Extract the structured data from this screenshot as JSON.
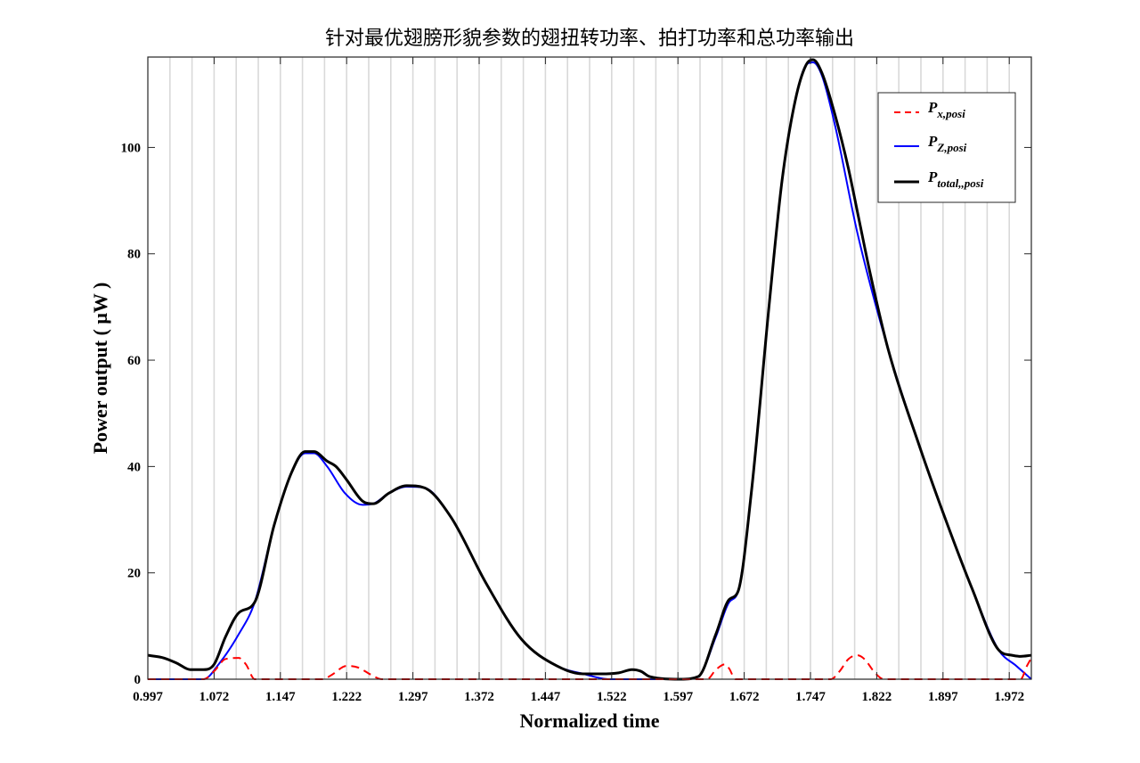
{
  "chart_data": {
    "type": "line",
    "title": "针对最优翅膀形貌参数的翅扭转功率、拍打功率和总功率输出",
    "xlabel": "Normalized time",
    "ylabel": "Power output ( μW )",
    "xlim": [
      0.997,
      1.997
    ],
    "ylim": [
      0,
      117
    ],
    "x_tick_labels": [
      "0.997",
      "1.072",
      "1.147",
      "1.222",
      "1.297",
      "1.372",
      "1.447",
      "1.522",
      "1.597",
      "1.672",
      "1.747",
      "1.822",
      "1.897",
      "1.972"
    ],
    "x_tick_values": [
      0.997,
      1.072,
      1.147,
      1.222,
      1.297,
      1.372,
      1.447,
      1.522,
      1.597,
      1.672,
      1.747,
      1.822,
      1.897,
      1.972
    ],
    "y_ticks": [
      0,
      20,
      40,
      60,
      80,
      100
    ],
    "grid": "vertical lines",
    "legend_position": "top-right",
    "series": [
      {
        "name": "P_x,posi",
        "legend_main": "P",
        "legend_sub": "x,posi",
        "color": "#ff0000",
        "style": "dashed",
        "x": [
          0.997,
          1.06,
          1.072,
          1.085,
          1.1,
          1.108,
          1.118,
          1.18,
          1.195,
          1.205,
          1.222,
          1.235,
          1.25,
          1.262,
          1.63,
          1.64,
          1.65,
          1.655,
          1.662,
          1.77,
          1.78,
          1.79,
          1.8,
          1.808,
          1.82,
          1.83,
          1.985,
          1.992,
          1.997
        ],
        "y": [
          0,
          0,
          1.5,
          3.8,
          4.0,
          2.8,
          0,
          0,
          0,
          0.8,
          2.5,
          2.2,
          0.8,
          0,
          0,
          1.8,
          2.8,
          2.0,
          0,
          0,
          1.5,
          3.8,
          4.5,
          3.8,
          1.2,
          0,
          0,
          2.5,
          4.0
        ]
      },
      {
        "name": "P_Z,posi",
        "legend_main": "P",
        "legend_sub": "Z,posi",
        "color": "#0000ff",
        "style": "solid",
        "x": [
          0.997,
          1.06,
          1.078,
          1.1,
          1.118,
          1.14,
          1.16,
          1.175,
          1.185,
          1.2,
          1.22,
          1.24,
          1.252,
          1.27,
          1.29,
          1.31,
          1.34,
          1.38,
          1.42,
          1.46,
          1.49,
          1.52,
          1.6,
          1.62,
          1.64,
          1.655,
          1.665,
          1.68,
          1.7,
          1.715,
          1.73,
          1.742,
          1.75,
          1.76,
          1.775,
          1.8,
          1.835,
          1.87,
          1.9,
          1.93,
          1.96,
          1.98,
          1.997
        ],
        "y": [
          0,
          0,
          3.0,
          8.5,
          14.5,
          29.0,
          39.0,
          42.5,
          42.5,
          40.0,
          35.0,
          32.8,
          33.0,
          35.0,
          36.2,
          36.0,
          30.5,
          18.0,
          7.5,
          2.5,
          1.0,
          0.0,
          0.0,
          0.5,
          8.0,
          14.5,
          16.5,
          35.0,
          70.0,
          94.0,
          109.0,
          115.5,
          116.0,
          113.5,
          104.0,
          84.0,
          62.0,
          44.0,
          30.0,
          17.0,
          5.5,
          2.5,
          0.0
        ]
      },
      {
        "name": "P_total,,posi",
        "legend_main": "P",
        "legend_sub": "total,,posi",
        "color": "#000000",
        "style": "solid",
        "x": [
          0.997,
          1.015,
          1.03,
          1.045,
          1.06,
          1.072,
          1.085,
          1.1,
          1.118,
          1.14,
          1.16,
          1.175,
          1.185,
          1.2,
          1.21,
          1.222,
          1.24,
          1.252,
          1.27,
          1.29,
          1.31,
          1.34,
          1.38,
          1.42,
          1.46,
          1.49,
          1.51,
          1.53,
          1.545,
          1.555,
          1.565,
          1.6,
          1.62,
          1.64,
          1.655,
          1.665,
          1.68,
          1.7,
          1.715,
          1.73,
          1.742,
          1.75,
          1.76,
          1.775,
          1.79,
          1.8,
          1.815,
          1.835,
          1.87,
          1.9,
          1.93,
          1.96,
          1.975,
          1.985,
          1.997
        ],
        "y": [
          4.5,
          4.0,
          3.0,
          1.8,
          1.8,
          2.8,
          8.0,
          12.5,
          14.5,
          29.0,
          39.0,
          42.8,
          42.8,
          41.0,
          40.0,
          37.5,
          33.5,
          33.0,
          35.0,
          36.4,
          36.0,
          30.5,
          18.0,
          7.5,
          2.5,
          1.0,
          1.0,
          1.2,
          1.8,
          1.5,
          0.5,
          0.0,
          0.5,
          8.5,
          15.0,
          16.5,
          35.0,
          70.0,
          94.0,
          109.0,
          115.5,
          116.5,
          114.0,
          106.0,
          96.0,
          88.0,
          76.0,
          62.0,
          44.0,
          30.0,
          17.0,
          5.5,
          4.5,
          4.3,
          4.5
        ]
      }
    ]
  }
}
